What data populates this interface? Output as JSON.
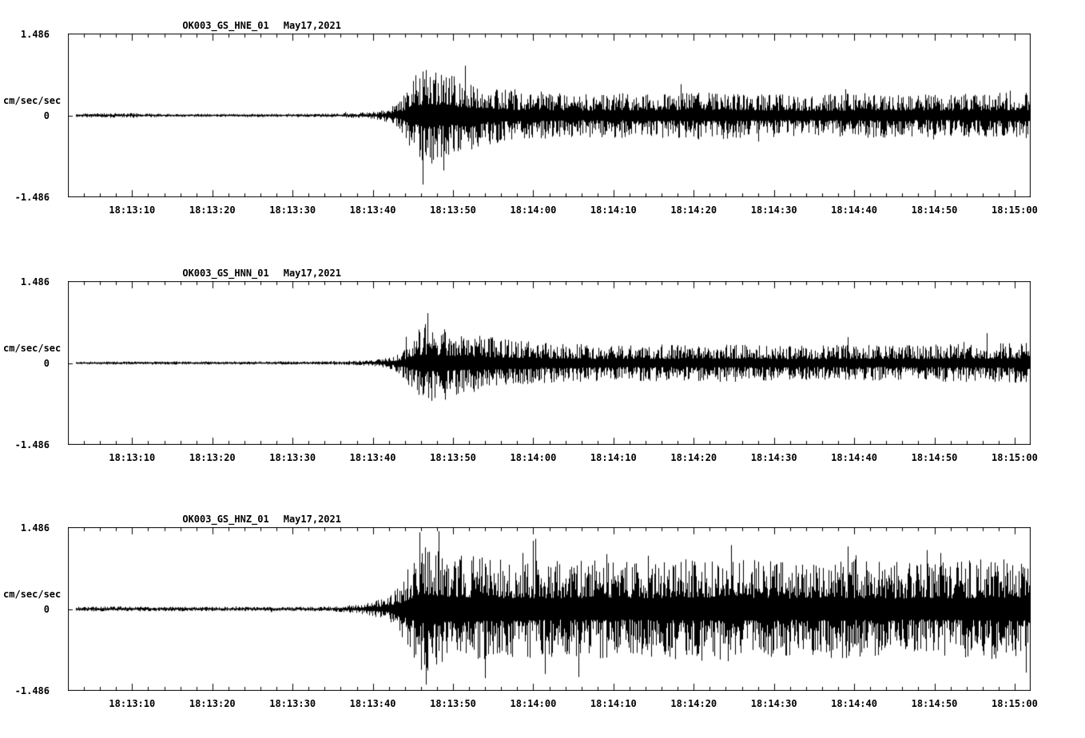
{
  "page": {
    "background": "#ffffff",
    "trace_color": "#000000",
    "text_color": "#000000"
  },
  "chart_data": {
    "type": "line",
    "subtype": "seismogram-3-component",
    "grid": false,
    "legend": "none",
    "y_axis": {
      "top_label": "1.486",
      "zero_label": "0",
      "bottom_label": "-1.486",
      "units": "cm/sec/sec",
      "ylim": [
        -1.486,
        1.486
      ]
    },
    "x_axis": {
      "duration_s": 120,
      "minor_tick_s": 2,
      "major_ticks": [
        {
          "t": 8,
          "label": "18:13:10"
        },
        {
          "t": 18,
          "label": "18:13:20"
        },
        {
          "t": 28,
          "label": "18:13:30"
        },
        {
          "t": 38,
          "label": "18:13:40"
        },
        {
          "t": 48,
          "label": "18:13:50"
        },
        {
          "t": 58,
          "label": "18:14:00"
        },
        {
          "t": 68,
          "label": "18:14:10"
        },
        {
          "t": 78,
          "label": "18:14:20"
        },
        {
          "t": 88,
          "label": "18:14:30"
        },
        {
          "t": 98,
          "label": "18:14:40"
        },
        {
          "t": 108,
          "label": "18:14:50"
        },
        {
          "t": 118,
          "label": "18:15:00"
        }
      ]
    },
    "panels": [
      {
        "station": "OK003_GS_HNE_01",
        "date": "May17,2021",
        "seed": 11,
        "spike_rate": 0.03,
        "envelope": [
          [
            0,
            0.035
          ],
          [
            8,
            0.045
          ],
          [
            12,
            0.03
          ],
          [
            30,
            0.03
          ],
          [
            34,
            0.04
          ],
          [
            37,
            0.055
          ],
          [
            39,
            0.09
          ],
          [
            41,
            0.22
          ],
          [
            42,
            0.45
          ],
          [
            43,
            0.7
          ],
          [
            44,
            0.88
          ],
          [
            45,
            0.92
          ],
          [
            46,
            0.85
          ],
          [
            47,
            0.78
          ],
          [
            49,
            0.7
          ],
          [
            51,
            0.6
          ],
          [
            53,
            0.52
          ],
          [
            56,
            0.46
          ],
          [
            60,
            0.44
          ],
          [
            64,
            0.4
          ],
          [
            68,
            0.42
          ],
          [
            72,
            0.4
          ],
          [
            76,
            0.43
          ],
          [
            80,
            0.46
          ],
          [
            84,
            0.42
          ],
          [
            88,
            0.4
          ],
          [
            92,
            0.38
          ],
          [
            96,
            0.4
          ],
          [
            100,
            0.42
          ],
          [
            104,
            0.4
          ],
          [
            108,
            0.38
          ],
          [
            112,
            0.4
          ],
          [
            116,
            0.42
          ],
          [
            120,
            0.44
          ]
        ],
        "spikes": [
          [
            44.2,
            -1.28
          ],
          [
            46.8,
            -1.02
          ],
          [
            49.5,
            0.92
          ]
        ]
      },
      {
        "station": "OK003_GS_HNN_01",
        "date": "May17,2021",
        "seed": 22,
        "spike_rate": 0.025,
        "envelope": [
          [
            0,
            0.03
          ],
          [
            30,
            0.03
          ],
          [
            35,
            0.04
          ],
          [
            38,
            0.06
          ],
          [
            40,
            0.1
          ],
          [
            42,
            0.3
          ],
          [
            43,
            0.55
          ],
          [
            44,
            0.65
          ],
          [
            45,
            0.7
          ],
          [
            46,
            0.66
          ],
          [
            48,
            0.6
          ],
          [
            50,
            0.55
          ],
          [
            52,
            0.5
          ],
          [
            55,
            0.44
          ],
          [
            58,
            0.4
          ],
          [
            62,
            0.36
          ],
          [
            66,
            0.34
          ],
          [
            70,
            0.33
          ],
          [
            74,
            0.35
          ],
          [
            78,
            0.33
          ],
          [
            82,
            0.36
          ],
          [
            86,
            0.33
          ],
          [
            90,
            0.32
          ],
          [
            94,
            0.33
          ],
          [
            98,
            0.34
          ],
          [
            102,
            0.33
          ],
          [
            106,
            0.34
          ],
          [
            110,
            0.35
          ],
          [
            114,
            0.36
          ],
          [
            118,
            0.37
          ],
          [
            120,
            0.37
          ]
        ],
        "spikes": [
          [
            44.5,
            0.72
          ],
          [
            45.3,
            -0.7
          ],
          [
            47.0,
            -0.68
          ]
        ]
      },
      {
        "station": "OK003_GS_HNZ_01",
        "date": "May17,2021",
        "seed": 33,
        "spike_rate": 0.06,
        "envelope": [
          [
            0,
            0.04
          ],
          [
            8,
            0.05
          ],
          [
            10,
            0.04
          ],
          [
            30,
            0.04
          ],
          [
            33,
            0.05
          ],
          [
            36,
            0.08
          ],
          [
            38,
            0.13
          ],
          [
            40,
            0.25
          ],
          [
            41,
            0.4
          ],
          [
            42,
            0.65
          ],
          [
            43,
            0.95
          ],
          [
            44,
            1.15
          ],
          [
            45,
            1.2
          ],
          [
            46,
            1.1
          ],
          [
            47,
            1.05
          ],
          [
            49,
            1.0
          ],
          [
            52,
            0.95
          ],
          [
            55,
            0.9
          ],
          [
            58,
            0.92
          ],
          [
            62,
            0.88
          ],
          [
            66,
            0.92
          ],
          [
            70,
            0.88
          ],
          [
            74,
            0.92
          ],
          [
            78,
            0.95
          ],
          [
            82,
            0.98
          ],
          [
            86,
            0.92
          ],
          [
            90,
            0.88
          ],
          [
            94,
            0.9
          ],
          [
            98,
            0.92
          ],
          [
            102,
            0.88
          ],
          [
            106,
            0.86
          ],
          [
            110,
            0.9
          ],
          [
            114,
            0.92
          ],
          [
            118,
            0.95
          ],
          [
            120,
            0.95
          ]
        ],
        "spikes": [
          [
            43.8,
            1.42
          ],
          [
            44.6,
            -1.4
          ],
          [
            46.2,
            1.44
          ],
          [
            52.0,
            -1.28
          ],
          [
            58.3,
            1.3
          ]
        ]
      }
    ]
  }
}
